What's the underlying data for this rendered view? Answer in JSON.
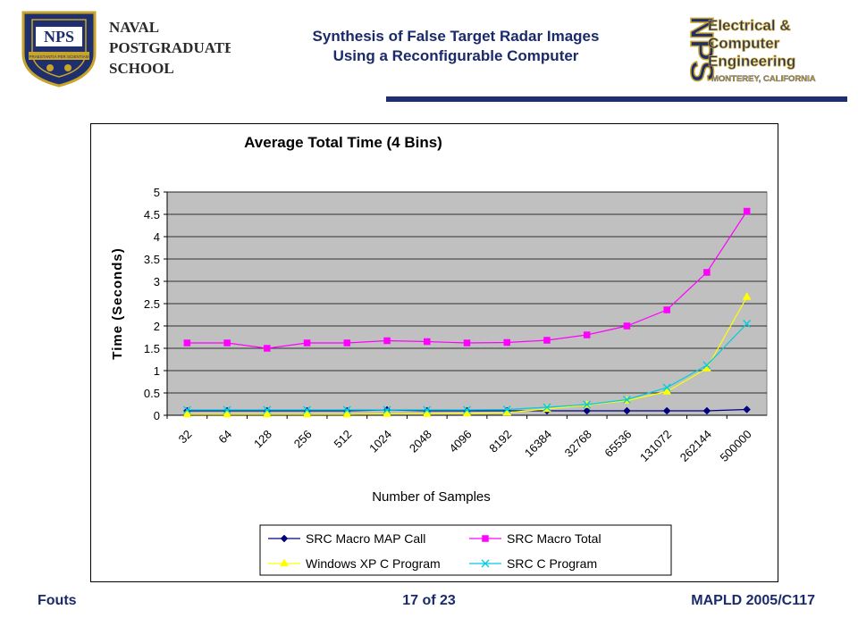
{
  "header": {
    "line1": "Synthesis of False Target Radar Images",
    "line2": "Using a Reconfigurable Computer"
  },
  "logo_left": {
    "wordmark": [
      "NAVAL",
      "POSTGRADUATE",
      "SCHOOL"
    ],
    "seal_text": "NPS",
    "motto": "PRAESTANTIA PER SCIENTIAM"
  },
  "logo_right": {
    "monogram": "NPS",
    "words": [
      "Electrical &",
      "Computer",
      "Engineering"
    ],
    "location": "MONTEREY, CALIFORNIA"
  },
  "footer": {
    "author": "Fouts",
    "page": "17 of 23",
    "event": "MAPLD 2005/C117"
  },
  "colors": {
    "navy": "#1a2a6a",
    "plot_bg": "#c0c0c0"
  },
  "chart_data": {
    "type": "line",
    "title": "Average Total Time (4 Bins)",
    "xlabel": "Number of Samples",
    "ylabel": "Time (Seconds)",
    "categories": [
      "32",
      "64",
      "128",
      "256",
      "512",
      "1024",
      "2048",
      "4096",
      "8192",
      "16384",
      "32768",
      "65536",
      "131072",
      "262144",
      "500000"
    ],
    "ylim": [
      0,
      5
    ],
    "yticks": [
      0,
      0.5,
      1,
      1.5,
      2,
      2.5,
      3,
      3.5,
      4,
      4.5,
      5
    ],
    "grid": true,
    "legend_position": "bottom",
    "series": [
      {
        "name": "SRC Macro MAP Call",
        "color": "#000080",
        "marker": "diamond",
        "values": [
          0.1,
          0.1,
          0.1,
          0.1,
          0.1,
          0.12,
          0.1,
          0.1,
          0.1,
          0.1,
          0.1,
          0.1,
          0.1,
          0.1,
          0.13
        ]
      },
      {
        "name": "SRC Macro Total",
        "color": "#ff00ff",
        "marker": "square",
        "values": [
          1.62,
          1.62,
          1.5,
          1.62,
          1.62,
          1.67,
          1.65,
          1.62,
          1.63,
          1.68,
          1.8,
          2.0,
          2.36,
          3.2,
          4.57
        ]
      },
      {
        "name": "Windows XP C Program",
        "color": "#ffff00",
        "marker": "triangle",
        "values": [
          0.02,
          0.02,
          0.02,
          0.02,
          0.02,
          0.03,
          0.03,
          0.04,
          0.06,
          0.14,
          0.23,
          0.33,
          0.53,
          1.05,
          2.65
        ]
      },
      {
        "name": "SRC C Program",
        "color": "#00ccdd",
        "marker": "x",
        "values": [
          0.12,
          0.12,
          0.12,
          0.12,
          0.12,
          0.12,
          0.12,
          0.12,
          0.13,
          0.18,
          0.24,
          0.35,
          0.62,
          1.12,
          2.05
        ]
      }
    ]
  }
}
